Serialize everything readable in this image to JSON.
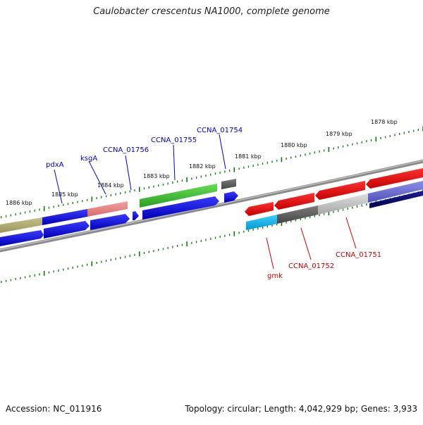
{
  "title": "Caulobacter crescentus NA1000, complete genome",
  "footer": {
    "accession": "Accession: NC_011916",
    "summary": "Topology: circular; Length: 4,042,929 bp; Genes: 3,933"
  },
  "ticks": [
    "1886 kbp",
    "1885 kbp",
    "1884 kbp",
    "1883 kbp",
    "1882 kbp",
    "1881 kbp",
    "1880 kbp",
    "1879 kbp",
    "1878 kbp"
  ],
  "labels": {
    "pdxA": "pdxA",
    "ksgA": "ksgA",
    "ccna01756": "CCNA_01756",
    "ccna01755": "CCNA_01755",
    "ccna01754": "CCNA_01754",
    "gmk": "gmk",
    "ccna01752": "CCNA_01752",
    "ccna01751": "CCNA_01751"
  },
  "colors": {
    "forward_label": "#0000cc",
    "reverse_label": "#cc0000",
    "tick": "#117711",
    "backbone": "#8a8a8a"
  }
}
